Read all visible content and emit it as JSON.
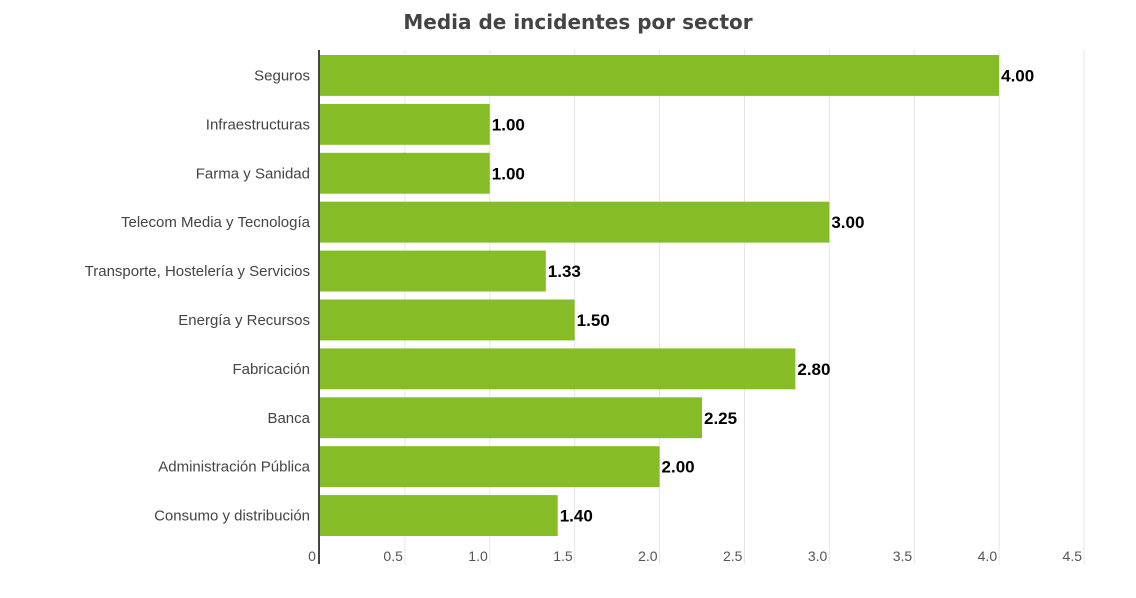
{
  "chart_data": {
    "type": "bar",
    "orientation": "horizontal",
    "title": "Media de incidentes por sector",
    "xlabel": "",
    "ylabel": "",
    "categories": [
      "Seguros",
      "Infraestructuras",
      "Farma y Sanidad",
      "Telecom Media y Tecnología",
      "Transporte, Hostelería y Servicios",
      "Energía y Recursos",
      "Fabricación",
      "Banca",
      "Administración Pública",
      "Consumo y distribución"
    ],
    "values": [
      4.0,
      1.0,
      1.0,
      3.0,
      1.33,
      1.5,
      2.8,
      2.25,
      2.0,
      1.4
    ],
    "value_labels": [
      "4.00",
      "1.00",
      "1.00",
      "3.00",
      "1.33",
      "1.50",
      "2.80",
      "2.25",
      "2.00",
      "1.40"
    ],
    "xlim": [
      0,
      4.5
    ],
    "xticks": [
      0,
      0.5,
      1.0,
      1.5,
      2.0,
      2.5,
      3.0,
      3.5,
      4.0,
      4.5
    ],
    "xtick_labels": [
      "0",
      "0.5",
      "1.0",
      "1.5",
      "2.0",
      "2.5",
      "3.0",
      "3.5",
      "4.0",
      "4.5"
    ],
    "grid": true,
    "legend": "none",
    "bar_color": "#86bc25",
    "grid_color": "#e6e6e6",
    "axis_color": "#444444"
  }
}
